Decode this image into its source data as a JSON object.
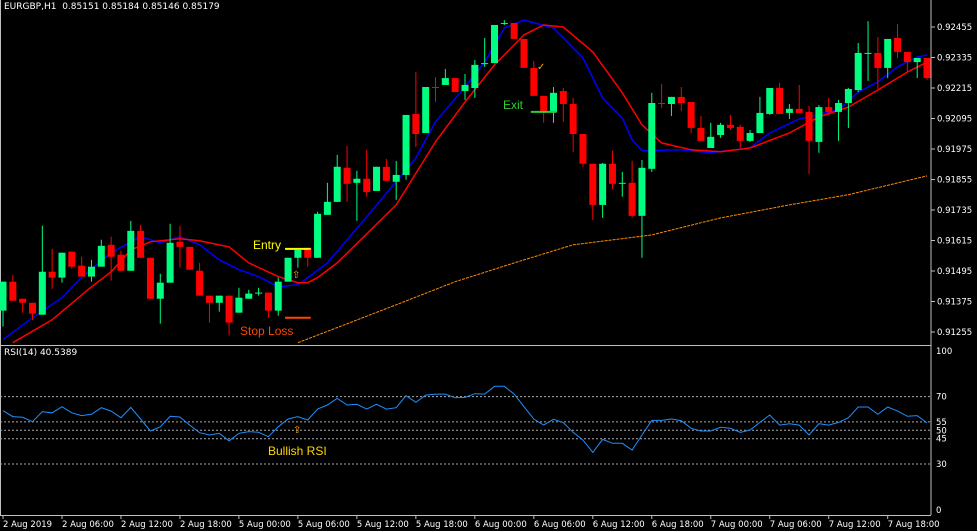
{
  "header": {
    "symbol": "EURGBP,H1",
    "ohlc": "0.85151 0.85184 0.85146 0.85179"
  },
  "rsi_header": {
    "label": "RSI(14) 40.5389"
  },
  "colors": {
    "background": "#000000",
    "bull": "#00FF80",
    "bear": "#FF0000",
    "fast_ma": "#0000FF",
    "slow_ma": "#FF0000",
    "long_ma": "#FF8C00",
    "rsi_line": "#1E90FF",
    "entry": "#FFFF00",
    "stop": "#FF4500",
    "exit": "#32CD32"
  },
  "annotations": {
    "entry": {
      "text": "Entry",
      "bar_from": 29,
      "bar_to": 31,
      "price": 0.91582
    },
    "stop_loss": {
      "text": "Stop Loss",
      "bar_from": 29,
      "bar_to": 31,
      "price": 0.91311
    },
    "exit": {
      "text": "Exit",
      "bar_from": 54,
      "bar_to": 56,
      "price": 0.92121
    },
    "entry_arrow_icon": "up-arrow-icon",
    "exit_check_icon": "check-icon",
    "bullish_rsi": {
      "text": "Bullish RSI",
      "icon": "up-arrow-icon"
    }
  },
  "chart_data": [
    {
      "type": "candlestick",
      "title": "EURGBP,H1",
      "ylim": [
        0.912,
        0.9252
      ],
      "y_ticks": [
        "0.92455",
        "0.92335",
        "0.92215",
        "0.92095",
        "0.91975",
        "0.91855",
        "0.91735",
        "0.91615",
        "0.91495",
        "0.91375",
        "0.91255"
      ],
      "x_ticks": [
        {
          "bar": 0,
          "label": "2 Aug 2019"
        },
        {
          "bar": 6,
          "label": "2 Aug 06:00"
        },
        {
          "bar": 12,
          "label": "2 Aug 12:00"
        },
        {
          "bar": 18,
          "label": "2 Aug 18:00"
        },
        {
          "bar": 24,
          "label": "5 Aug 00:00"
        },
        {
          "bar": 30,
          "label": "5 Aug 06:00"
        },
        {
          "bar": 36,
          "label": "5 Aug 12:00"
        },
        {
          "bar": 42,
          "label": "5 Aug 18:00"
        },
        {
          "bar": 48,
          "label": "6 Aug 00:00"
        },
        {
          "bar": 54,
          "label": "6 Aug 06:00"
        },
        {
          "bar": 60,
          "label": "6 Aug 12:00"
        },
        {
          "bar": 66,
          "label": "6 Aug 18:00"
        },
        {
          "bar": 72,
          "label": "7 Aug 00:00"
        },
        {
          "bar": 78,
          "label": "7 Aug 06:00"
        },
        {
          "bar": 84,
          "label": "7 Aug 12:00"
        },
        {
          "bar": 90,
          "label": "7 Aug 18:00"
        }
      ],
      "ohlc": [
        [
          0.91339,
          0.91453,
          0.91276,
          0.91453
        ],
        [
          0.91453,
          0.9148,
          0.91378,
          0.91378
        ],
        [
          0.91386,
          0.91386,
          0.91331,
          0.9137
        ],
        [
          0.9137,
          0.9137,
          0.91303,
          0.91327
        ],
        [
          0.91323,
          0.91673,
          0.91323,
          0.91492
        ],
        [
          0.91492,
          0.91582,
          0.91425,
          0.91469
        ],
        [
          0.91469,
          0.91567,
          0.91449,
          0.91567
        ],
        [
          0.91571,
          0.91571,
          0.91504,
          0.91512
        ],
        [
          0.91516,
          0.91551,
          0.91473,
          0.91473
        ],
        [
          0.91473,
          0.91539,
          0.91453,
          0.91512
        ],
        [
          0.91512,
          0.91618,
          0.91512,
          0.91594
        ],
        [
          0.91598,
          0.9163,
          0.91457,
          0.91551
        ],
        [
          0.91559,
          0.91575,
          0.91496,
          0.91496
        ],
        [
          0.91496,
          0.91692,
          0.91496,
          0.91653
        ],
        [
          0.91653,
          0.91677,
          0.91547,
          0.91547
        ],
        [
          0.91547,
          0.91547,
          0.91386,
          0.91386
        ],
        [
          0.91386,
          0.91484,
          0.91288,
          0.91449
        ],
        [
          0.91449,
          0.91681,
          0.91449,
          0.91606
        ],
        [
          0.9161,
          0.91673,
          0.91508,
          0.9159
        ],
        [
          0.9159,
          0.9159,
          0.915,
          0.915
        ],
        [
          0.91496,
          0.91527,
          0.91398,
          0.91398
        ],
        [
          0.91398,
          0.91398,
          0.91292,
          0.9137
        ],
        [
          0.9137,
          0.91398,
          0.91335,
          0.91398
        ],
        [
          0.91398,
          0.91398,
          0.91241,
          0.91292
        ],
        [
          0.91331,
          0.91429,
          0.91331,
          0.9139
        ],
        [
          0.91386,
          0.91421,
          0.91386,
          0.91406
        ],
        [
          0.91406,
          0.91429,
          0.91398,
          0.9141
        ],
        [
          0.9141,
          0.9141,
          0.91311,
          0.91339
        ],
        [
          0.91339,
          0.91469,
          0.91319,
          0.91453
        ],
        [
          0.91453,
          0.91547,
          0.91453,
          0.91547
        ],
        [
          0.91547,
          0.91578,
          0.91508,
          0.91578
        ],
        [
          0.91586,
          0.91586,
          0.91512,
          0.91547
        ],
        [
          0.91547,
          0.91728,
          0.91547,
          0.9172
        ],
        [
          0.91716,
          0.91842,
          0.91716,
          0.91767
        ],
        [
          0.91767,
          0.91952,
          0.91767,
          0.91905
        ],
        [
          0.91901,
          0.91987,
          0.91767,
          0.91838
        ],
        [
          0.91842,
          0.91889,
          0.91692,
          0.91858
        ],
        [
          0.91858,
          0.91972,
          0.91787,
          0.91806
        ],
        [
          0.9181,
          0.91905,
          0.9181,
          0.91905
        ],
        [
          0.91905,
          0.91936,
          0.9185,
          0.9185
        ],
        [
          0.91846,
          0.91928,
          0.91775,
          0.91873
        ],
        [
          0.91873,
          0.92109,
          0.91854,
          0.92109
        ],
        [
          0.92113,
          0.92278,
          0.91983,
          0.92034
        ],
        [
          0.92038,
          0.92219,
          0.92038,
          0.92219
        ],
        [
          0.92219,
          0.92258,
          0.9216,
          0.92215
        ],
        [
          0.92227,
          0.9229,
          0.92227,
          0.92254
        ],
        [
          0.92254,
          0.92254,
          0.92199,
          0.92199
        ],
        [
          0.92203,
          0.9227,
          0.92168,
          0.92227
        ],
        [
          0.92215,
          0.92325,
          0.92176,
          0.92306
        ],
        [
          0.9231,
          0.92412,
          0.92298,
          0.92313
        ],
        [
          0.92313,
          0.92463,
          0.92313,
          0.92463
        ],
        [
          0.92467,
          0.92482,
          0.92463,
          0.92471
        ],
        [
          0.92471,
          0.92471,
          0.92408,
          0.92408
        ],
        [
          0.92408,
          0.92408,
          0.92294,
          0.92294
        ],
        [
          0.92294,
          0.92321,
          0.92184,
          0.92184
        ],
        [
          0.92184,
          0.92184,
          0.92078,
          0.92121
        ],
        [
          0.92121,
          0.92219,
          0.92078,
          0.92196
        ],
        [
          0.92203,
          0.92215,
          0.92082,
          0.92152
        ],
        [
          0.92152,
          0.92176,
          0.91964,
          0.92034
        ],
        [
          0.92034,
          0.92034,
          0.91905,
          0.91917
        ],
        [
          0.91917,
          0.91917,
          0.91696,
          0.91755
        ],
        [
          0.91755,
          0.9192,
          0.91704,
          0.91917
        ],
        [
          0.91917,
          0.91968,
          0.91818,
          0.91838
        ],
        [
          0.91838,
          0.91885,
          0.91787,
          0.91842
        ],
        [
          0.91842,
          0.91928,
          0.91704,
          0.91712
        ],
        [
          0.91712,
          0.91932,
          0.91547,
          0.91901
        ],
        [
          0.91897,
          0.92196,
          0.91885,
          0.92156
        ],
        [
          0.92156,
          0.92231,
          0.92137,
          0.92152
        ],
        [
          0.92152,
          0.9218,
          0.92105,
          0.9218
        ],
        [
          0.9218,
          0.92219,
          0.92125,
          0.92156
        ],
        [
          0.9216,
          0.9216,
          0.92038,
          0.92058
        ],
        [
          0.92058,
          0.92105,
          0.92007,
          0.92007
        ],
        [
          0.91979,
          0.92078,
          0.91979,
          0.92023
        ],
        [
          0.9203,
          0.92078,
          0.92019,
          0.9207
        ],
        [
          0.9207,
          0.92109,
          0.9205,
          0.92058
        ],
        [
          0.92062,
          0.9207,
          0.91979,
          0.92007
        ],
        [
          0.92007,
          0.9205,
          0.92003,
          0.92038
        ],
        [
          0.92038,
          0.9218,
          0.92038,
          0.92117
        ],
        [
          0.92113,
          0.92215,
          0.92109,
          0.92215
        ],
        [
          0.92215,
          0.92235,
          0.92113,
          0.92113
        ],
        [
          0.92117,
          0.92152,
          0.92093,
          0.92133
        ],
        [
          0.92133,
          0.92227,
          0.92117,
          0.92117
        ],
        [
          0.92121,
          0.92144,
          0.91877,
          0.92007
        ],
        [
          0.92003,
          0.92148,
          0.9196,
          0.9214
        ],
        [
          0.9214,
          0.92176,
          0.92109,
          0.92121
        ],
        [
          0.92121,
          0.92168,
          0.92007,
          0.92156
        ],
        [
          0.92156,
          0.92215,
          0.92058,
          0.92211
        ],
        [
          0.92207,
          0.92392,
          0.92199,
          0.92353
        ],
        [
          0.92353,
          0.92478,
          0.92243,
          0.92353
        ],
        [
          0.92353,
          0.92416,
          0.92211,
          0.92294
        ],
        [
          0.92294,
          0.92408,
          0.92254,
          0.92408
        ],
        [
          0.92412,
          0.92467,
          0.92333,
          0.92357
        ],
        [
          0.92357,
          0.92357,
          0.92278,
          0.92317
        ],
        [
          0.92317,
          0.92333,
          0.92254,
          0.92333
        ],
        [
          0.92333,
          0.92333,
          0.92247,
          0.92254
        ]
      ],
      "moving_averages": {
        "fast_blue": [
          [
            0,
            0.91225
          ],
          [
            3,
            0.91311
          ],
          [
            6,
            0.9139
          ],
          [
            8,
            0.91469
          ],
          [
            11,
            0.91567
          ],
          [
            13,
            0.9161
          ],
          [
            14,
            0.9163
          ],
          [
            16,
            0.91606
          ],
          [
            18,
            0.9163
          ],
          [
            20,
            0.91598
          ],
          [
            22,
            0.91539
          ],
          [
            24,
            0.915
          ],
          [
            26,
            0.91473
          ],
          [
            28,
            0.91433
          ],
          [
            30,
            0.91441
          ],
          [
            31,
            0.91469
          ],
          [
            33,
            0.91527
          ],
          [
            37,
            0.91708
          ],
          [
            42,
            0.9194
          ],
          [
            44,
            0.92082
          ],
          [
            47,
            0.92219
          ],
          [
            49,
            0.92317
          ],
          [
            51,
            0.92451
          ],
          [
            53,
            0.92482
          ],
          [
            56,
            0.92451
          ],
          [
            59,
            0.92333
          ],
          [
            61,
            0.92176
          ],
          [
            63,
            0.92097
          ],
          [
            64,
            0.92011
          ],
          [
            65,
            0.91968
          ],
          [
            69,
            0.91972
          ],
          [
            72,
            0.9196
          ],
          [
            76,
            0.91979
          ],
          [
            78,
            0.92038
          ],
          [
            81,
            0.92093
          ],
          [
            85,
            0.92129
          ],
          [
            87,
            0.92199
          ],
          [
            89,
            0.92239
          ],
          [
            91,
            0.92298
          ],
          [
            93,
            0.92337
          ],
          [
            94,
            0.92345
          ]
        ],
        "slow_red": [
          [
            1,
            0.91213
          ],
          [
            5,
            0.91303
          ],
          [
            9,
            0.91433
          ],
          [
            11,
            0.91492
          ],
          [
            13,
            0.91578
          ],
          [
            15,
            0.9161
          ],
          [
            18,
            0.91622
          ],
          [
            20,
            0.91614
          ],
          [
            23,
            0.9159
          ],
          [
            25,
            0.91527
          ],
          [
            28,
            0.91473
          ],
          [
            30,
            0.91449
          ],
          [
            31,
            0.91449
          ],
          [
            32,
            0.91469
          ],
          [
            34,
            0.91527
          ],
          [
            40,
            0.91755
          ],
          [
            44,
            0.92003
          ],
          [
            47,
            0.9216
          ],
          [
            50,
            0.92306
          ],
          [
            53,
            0.92424
          ],
          [
            55,
            0.92463
          ],
          [
            57,
            0.92455
          ],
          [
            60,
            0.92357
          ],
          [
            63,
            0.92196
          ],
          [
            65,
            0.9207
          ],
          [
            67,
            0.91999
          ],
          [
            70,
            0.91972
          ],
          [
            73,
            0.91964
          ],
          [
            76,
            0.91979
          ],
          [
            80,
            0.92038
          ],
          [
            83,
            0.92101
          ],
          [
            86,
            0.9214
          ],
          [
            89,
            0.92207
          ],
          [
            92,
            0.92278
          ],
          [
            94,
            0.92317
          ]
        ],
        "long_orange": [
          [
            30,
            0.91213
          ],
          [
            40,
            0.91362
          ],
          [
            46,
            0.91453
          ],
          [
            52,
            0.91527
          ],
          [
            58,
            0.91598
          ],
          [
            63,
            0.91622
          ],
          [
            66,
            0.91637
          ],
          [
            73,
            0.91704
          ],
          [
            80,
            0.91755
          ],
          [
            86,
            0.91795
          ],
          [
            94,
            0.91869
          ]
        ]
      }
    },
    {
      "type": "line",
      "title": "RSI(14) 40.5389",
      "ylim": [
        0,
        100
      ],
      "y_ticks": [
        "100",
        "70",
        "55",
        "50",
        "45",
        "30",
        "0"
      ],
      "levels": [
        70,
        55,
        50,
        45,
        30
      ],
      "values": [
        61.6,
        58.1,
        57.7,
        55.1,
        61.0,
        60.4,
        64.0,
        60.4,
        58.7,
        59.5,
        63.4,
        61.4,
        57.5,
        63.6,
        56.7,
        49.6,
        52.1,
        58.3,
        57.9,
        53.1,
        48.6,
        47.2,
        48.2,
        43.7,
        48.2,
        49.2,
        48.8,
        46.2,
        52.1,
        56.7,
        58.1,
        56.1,
        62.6,
        65.0,
        69.0,
        65.0,
        65.4,
        62.6,
        65.4,
        62.6,
        63.4,
        70.5,
        66.6,
        70.9,
        71.5,
        71.5,
        69.3,
        69.5,
        71.7,
        71.5,
        76.1,
        76.1,
        71.5,
        64.0,
        56.7,
        53.1,
        56.5,
        54.5,
        48.8,
        44.2,
        36.9,
        44.6,
        42.3,
        42.3,
        38.3,
        47.2,
        55.9,
        55.9,
        56.7,
        55.7,
        51.2,
        49.6,
        49.6,
        51.8,
        51.2,
        48.8,
        50.2,
        54.7,
        59.1,
        53.1,
        53.9,
        53.1,
        47.2,
        53.9,
        53.1,
        54.7,
        57.5,
        63.8,
        63.8,
        59.5,
        63.8,
        61.4,
        58.3,
        58.7,
        54.4
      ]
    }
  ]
}
